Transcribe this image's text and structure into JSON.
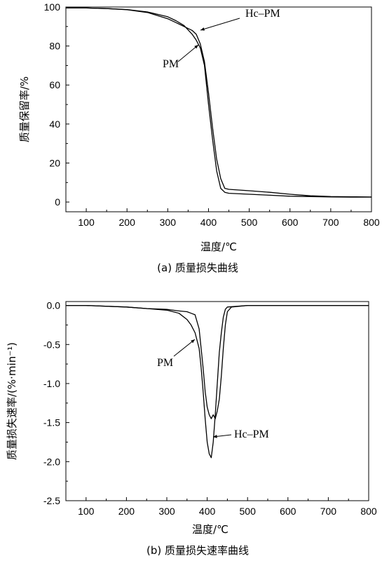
{
  "chart_data": [
    {
      "type": "line",
      "caption": "(a) 质量损失曲线",
      "xlabel": "温度/℃",
      "ylabel": "质量保留率/%",
      "xlim": [
        50,
        800
      ],
      "ylim": [
        -5,
        100
      ],
      "xticks": [
        100,
        200,
        300,
        400,
        500,
        600,
        700,
        800
      ],
      "yticks": [
        0,
        20,
        40,
        60,
        80,
        100
      ],
      "grid": false,
      "series": [
        {
          "name": "PM",
          "x": [
            50,
            100,
            150,
            200,
            250,
            300,
            320,
            340,
            360,
            370,
            380,
            390,
            400,
            410,
            420,
            430,
            440,
            450,
            500,
            550,
            600,
            650,
            700,
            750,
            800
          ],
          "values": [
            99.5,
            99.5,
            99.2,
            98.7,
            97.5,
            95,
            93,
            90.5,
            86,
            83,
            79,
            70,
            50,
            32,
            16,
            7,
            5,
            4.5,
            4,
            3.5,
            3,
            2.8,
            2.6,
            2.5,
            2.5
          ]
        },
        {
          "name": "Hc–PM",
          "x": [
            50,
            100,
            150,
            200,
            250,
            300,
            320,
            340,
            360,
            370,
            380,
            390,
            400,
            410,
            420,
            430,
            440,
            450,
            500,
            550,
            600,
            650,
            700,
            750,
            800
          ],
          "values": [
            99.5,
            99.5,
            99.2,
            98.6,
            97.2,
            94,
            92,
            90,
            88,
            86,
            81,
            72,
            56,
            38,
            22,
            12,
            7,
            6.5,
            5.8,
            5,
            4,
            3.2,
            2.8,
            2.7,
            2.6
          ]
        }
      ],
      "annotations": [
        {
          "text": "Hc–PM",
          "x": 377,
          "y": 88
        },
        {
          "text": "PM",
          "x": 367,
          "y": 80
        }
      ]
    },
    {
      "type": "line",
      "caption": "(b) 质量损失速率曲线",
      "xlabel": "温度/℃",
      "ylabel": "质量损失速率/(%·min⁻¹)",
      "xlim": [
        50,
        800
      ],
      "ylim": [
        -2.5,
        0.05
      ],
      "xticks": [
        100,
        200,
        300,
        400,
        500,
        600,
        700,
        800
      ],
      "yticks": [
        0.0,
        -0.5,
        -1.0,
        -1.5,
        -2.0,
        -2.5
      ],
      "grid": false,
      "series": [
        {
          "name": "PM",
          "x": [
            50,
            100,
            200,
            250,
            300,
            330,
            350,
            360,
            370,
            380,
            385,
            390,
            395,
            400,
            405,
            410,
            415,
            420,
            425,
            430,
            435,
            440,
            445,
            450,
            500,
            600,
            700,
            800
          ],
          "values": [
            0.0,
            0.0,
            -0.02,
            -0.04,
            -0.06,
            -0.1,
            -0.18,
            -0.25,
            -0.35,
            -0.55,
            -0.8,
            -1.1,
            -1.45,
            -1.75,
            -1.9,
            -1.95,
            -1.75,
            -1.4,
            -1.0,
            -0.6,
            -0.35,
            -0.15,
            -0.05,
            -0.02,
            0.0,
            0.0,
            0.0,
            0.0
          ]
        },
        {
          "name": "Hc–PM",
          "x": [
            50,
            100,
            200,
            250,
            300,
            330,
            350,
            360,
            370,
            380,
            390,
            395,
            400,
            405,
            410,
            415,
            420,
            425,
            430,
            435,
            440,
            445,
            450,
            460,
            500,
            600,
            700,
            800
          ],
          "values": [
            0.0,
            0.0,
            -0.02,
            -0.04,
            -0.05,
            -0.07,
            -0.08,
            -0.1,
            -0.12,
            -0.3,
            -0.8,
            -1.1,
            -1.3,
            -1.4,
            -1.45,
            -1.4,
            -1.45,
            -1.35,
            -1.2,
            -0.9,
            -0.55,
            -0.25,
            -0.08,
            -0.02,
            0.0,
            0.0,
            0.0,
            0.0
          ]
        }
      ],
      "annotations": [
        {
          "text": "PM",
          "x": 360,
          "y": -0.32
        },
        {
          "text": "Hc–PM",
          "x": 420,
          "y": -1.62
        }
      ]
    }
  ]
}
